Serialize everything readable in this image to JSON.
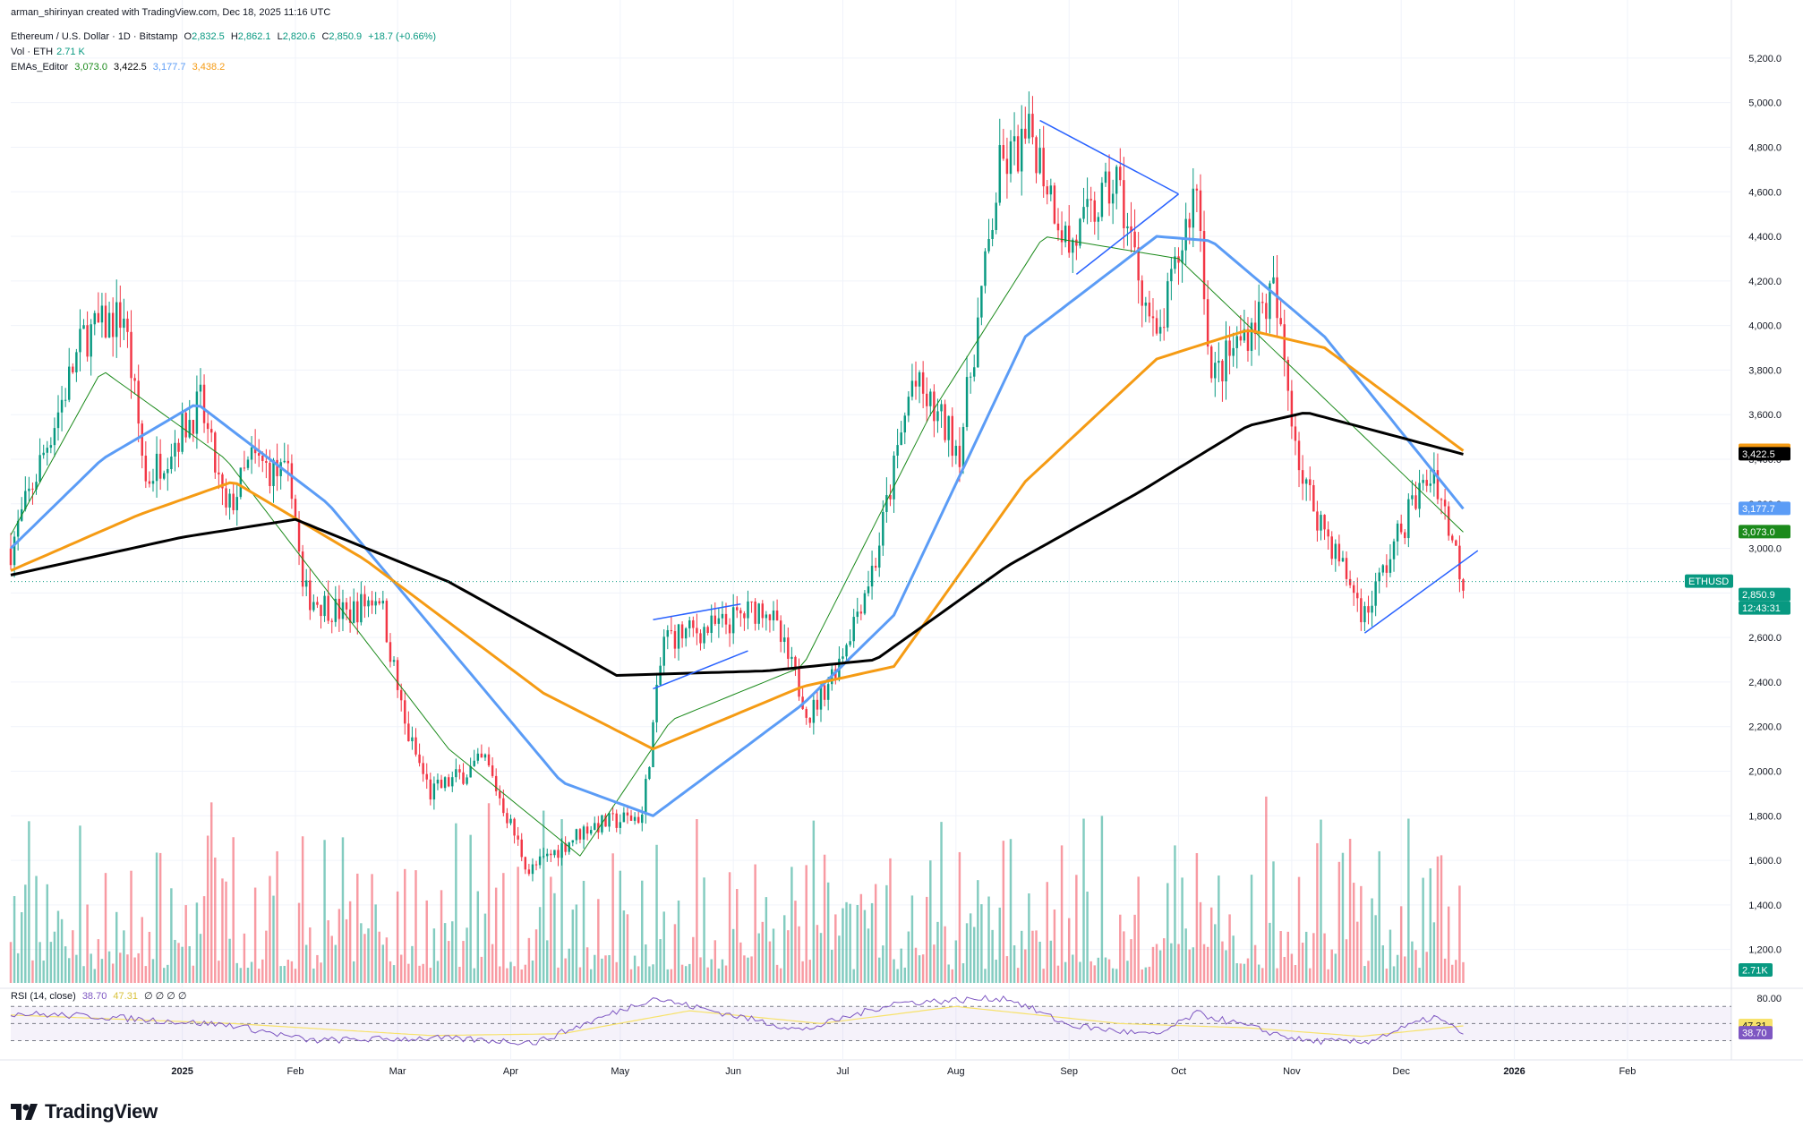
{
  "header": {
    "credit": "arman_shirinyan created with TradingView.com, Dec 18, 2025 11:16 UTC",
    "symbol": "Ethereum / U.S. Dollar · 1D · Bitstamp",
    "ohlc": {
      "o_label": "O",
      "o": "2,832.5",
      "h_label": "H",
      "h": "2,862.1",
      "l_label": "L",
      "l": "2,820.6",
      "c_label": "C",
      "c": "2,850.9",
      "change": "+18.7 (+0.66%)"
    },
    "vol_label": "Vol · ETH",
    "vol_value": "2.71 K",
    "ema_label": "EMAs_Editor",
    "ema_values": [
      "3,073.0",
      "3,422.5",
      "3,177.7",
      "3,438.2"
    ]
  },
  "rsi_header": {
    "label": "RSI (14, close)",
    "value": "38.70",
    "ma": "47.31",
    "extras": "∅ ∅ ∅ ∅"
  },
  "price_axis": [
    "5,200.0",
    "5,000.0",
    "4,800.0",
    "4,600.0",
    "4,400.0",
    "4,200.0",
    "4,000.0",
    "3,800.0",
    "3,600.0",
    "3,400.0",
    "3,200.0",
    "3,000.0",
    "2,800.0",
    "2,600.0",
    "2,400.0",
    "2,200.0",
    "2,000.0",
    "1,800.0",
    "1,600.0",
    "1,400.0",
    "1,200.0"
  ],
  "rsi_axis": [
    "80.00"
  ],
  "time_axis": [
    "2025",
    "Feb",
    "Mar",
    "Apr",
    "May",
    "Jun",
    "Jul",
    "Aug",
    "Sep",
    "Oct",
    "Nov",
    "Dec",
    "2026",
    "Feb"
  ],
  "price_tags": [
    {
      "text": "3,438.2",
      "color": "#f59b14",
      "price": 3438.2
    },
    {
      "text": "3,422.5",
      "color": "#000000",
      "price": 3422.5
    },
    {
      "text": "3,177.7",
      "color": "#5b9cf6",
      "price": 3177.7
    },
    {
      "text": "3,073.0",
      "color": "#1b8a1b",
      "price": 3073.0
    },
    {
      "text": "ETHUSD",
      "color": "#089981",
      "price": 2850.9
    },
    {
      "text": "2,850.9",
      "color": "#089981",
      "price": 2850.9
    },
    {
      "text": "12:43:31",
      "color": "#089981",
      "price": 2850.9
    }
  ],
  "vol_tag": {
    "text": "2.71K",
    "color": "#089981"
  },
  "rsi_tags": [
    {
      "text": "47.31",
      "color": "#f7e26b",
      "fg": "#131722",
      "rsi": 47.31
    },
    {
      "text": "38.70",
      "color": "#7e57c2",
      "fg": "#ffffff",
      "rsi": 38.7
    }
  ],
  "branding": "TradingView",
  "colors": {
    "up": "#089981",
    "down": "#f23645",
    "ema20": "#1b8a1b",
    "ema50": "#5b9cf6",
    "ema100": "#f59b14",
    "ema200": "#000000",
    "trend": "#2962ff",
    "rsi": "#7e57c2",
    "rsi_ma": "#f7e26b"
  },
  "chart_data": {
    "type": "line",
    "xlabel": "",
    "ylabel": "",
    "ylim": [
      1050,
      5300
    ],
    "x_range": [
      "2024-11-15",
      "2026-02-28"
    ],
    "grid": true,
    "price_key": [
      {
        "date": "2024-11-15",
        "price": 3000
      },
      {
        "date": "2024-12-05",
        "price": 3950
      },
      {
        "date": "2024-12-16",
        "price": 4050
      },
      {
        "date": "2024-12-22",
        "price": 3300
      },
      {
        "date": "2025-01-06",
        "price": 3650
      },
      {
        "date": "2025-01-13",
        "price": 3150
      },
      {
        "date": "2025-01-20",
        "price": 3400
      },
      {
        "date": "2025-01-31",
        "price": 3300
      },
      {
        "date": "2025-02-03",
        "price": 2800
      },
      {
        "date": "2025-02-15",
        "price": 2700
      },
      {
        "date": "2025-02-24",
        "price": 2800
      },
      {
        "date": "2025-03-03",
        "price": 2200
      },
      {
        "date": "2025-03-10",
        "price": 1900
      },
      {
        "date": "2025-03-25",
        "price": 2050
      },
      {
        "date": "2025-04-06",
        "price": 1550
      },
      {
        "date": "2025-04-22",
        "price": 1750
      },
      {
        "date": "2025-05-07",
        "price": 1800
      },
      {
        "date": "2025-05-13",
        "price": 2600
      },
      {
        "date": "2025-05-28",
        "price": 2650
      },
      {
        "date": "2025-06-10",
        "price": 2750
      },
      {
        "date": "2025-06-22",
        "price": 2250
      },
      {
        "date": "2025-06-30",
        "price": 2500
      },
      {
        "date": "2025-07-10",
        "price": 2950
      },
      {
        "date": "2025-07-20",
        "price": 3750
      },
      {
        "date": "2025-08-02",
        "price": 3450
      },
      {
        "date": "2025-08-13",
        "price": 4700
      },
      {
        "date": "2025-08-22",
        "price": 4850
      },
      {
        "date": "2025-09-01",
        "price": 4350
      },
      {
        "date": "2025-09-14",
        "price": 4650
      },
      {
        "date": "2025-09-25",
        "price": 3900
      },
      {
        "date": "2025-10-06",
        "price": 4650
      },
      {
        "date": "2025-10-10",
        "price": 3750
      },
      {
        "date": "2025-10-27",
        "price": 4150
      },
      {
        "date": "2025-11-04",
        "price": 3300
      },
      {
        "date": "2025-11-21",
        "price": 2700
      },
      {
        "date": "2025-12-04",
        "price": 3200
      },
      {
        "date": "2025-12-10",
        "price": 3350
      },
      {
        "date": "2025-12-18",
        "price": 2850.9
      }
    ],
    "series": [
      {
        "values_key": [
          {
            "date": "2024-11-15",
            "price": 3060
          },
          {
            "date": "2024-12-10",
            "price": 3800
          },
          {
            "date": "2025-01-13",
            "price": 3400
          },
          {
            "date": "2025-03-15",
            "price": 2100
          },
          {
            "date": "2025-04-20",
            "price": 1620
          },
          {
            "date": "2025-05-15",
            "price": 2230
          },
          {
            "date": "2025-06-20",
            "price": 2470
          },
          {
            "date": "2025-07-25",
            "price": 3600
          },
          {
            "date": "2025-08-25",
            "price": 4400
          },
          {
            "date": "2025-10-01",
            "price": 4300
          },
          {
            "date": "2025-11-05",
            "price": 3750
          },
          {
            "date": "2025-12-18",
            "price": 3073.0
          }
        ]
      },
      {
        "values_key": [
          {
            "date": "2024-11-15",
            "price": 3000
          },
          {
            "date": "2024-12-10",
            "price": 3400
          },
          {
            "date": "2025-01-05",
            "price": 3650
          },
          {
            "date": "2025-02-10",
            "price": 3200
          },
          {
            "date": "2025-04-15",
            "price": 1950
          },
          {
            "date": "2025-05-10",
            "price": 1800
          },
          {
            "date": "2025-06-20",
            "price": 2300
          },
          {
            "date": "2025-07-15",
            "price": 2700
          },
          {
            "date": "2025-08-20",
            "price": 3950
          },
          {
            "date": "2025-09-25",
            "price": 4400
          },
          {
            "date": "2025-10-10",
            "price": 4380
          },
          {
            "date": "2025-11-10",
            "price": 3950
          },
          {
            "date": "2025-12-18",
            "price": 3177.7
          }
        ]
      },
      {
        "values_key": [
          {
            "date": "2024-11-15",
            "price": 2900
          },
          {
            "date": "2024-12-20",
            "price": 3150
          },
          {
            "date": "2025-01-15",
            "price": 3300
          },
          {
            "date": "2025-02-20",
            "price": 2950
          },
          {
            "date": "2025-04-10",
            "price": 2350
          },
          {
            "date": "2025-05-10",
            "price": 2100
          },
          {
            "date": "2025-06-20",
            "price": 2380
          },
          {
            "date": "2025-07-15",
            "price": 2470
          },
          {
            "date": "2025-08-20",
            "price": 3300
          },
          {
            "date": "2025-09-25",
            "price": 3850
          },
          {
            "date": "2025-10-20",
            "price": 3980
          },
          {
            "date": "2025-11-10",
            "price": 3900
          },
          {
            "date": "2025-12-18",
            "price": 3438.2
          }
        ]
      },
      {
        "values_key": [
          {
            "date": "2024-11-15",
            "price": 2880
          },
          {
            "date": "2025-01-01",
            "price": 3050
          },
          {
            "date": "2025-02-01",
            "price": 3130
          },
          {
            "date": "2025-03-15",
            "price": 2850
          },
          {
            "date": "2025-04-30",
            "price": 2430
          },
          {
            "date": "2025-06-10",
            "price": 2450
          },
          {
            "date": "2025-07-10",
            "price": 2500
          },
          {
            "date": "2025-08-15",
            "price": 2920
          },
          {
            "date": "2025-09-20",
            "price": 3250
          },
          {
            "date": "2025-10-20",
            "price": 3550
          },
          {
            "date": "2025-11-05",
            "price": 3610
          },
          {
            "date": "2025-12-18",
            "price": 3422.5
          }
        ]
      }
    ],
    "trendlines": [
      {
        "points": [
          {
            "date": "2025-05-10",
            "price": 2370
          },
          {
            "date": "2025-06-05",
            "price": 2540
          }
        ]
      },
      {
        "points": [
          {
            "date": "2025-05-10",
            "price": 2680
          },
          {
            "date": "2025-06-03",
            "price": 2750
          }
        ]
      },
      {
        "points": [
          {
            "date": "2025-08-24",
            "price": 4920
          },
          {
            "date": "2025-10-01",
            "price": 4590
          }
        ]
      },
      {
        "points": [
          {
            "date": "2025-09-03",
            "price": 4230
          },
          {
            "date": "2025-10-01",
            "price": 4590
          }
        ]
      },
      {
        "points": [
          {
            "date": "2025-11-21",
            "price": 2620
          },
          {
            "date": "2025-12-22",
            "price": 2990
          }
        ]
      }
    ],
    "rsi_ylim": [
      20,
      85
    ],
    "rsi_key": [
      {
        "date": "2024-11-15",
        "value": 62
      },
      {
        "date": "2024-12-10",
        "value": 58
      },
      {
        "date": "2025-01-15",
        "value": 48
      },
      {
        "date": "2025-02-05",
        "value": 30
      },
      {
        "date": "2025-03-10",
        "value": 33
      },
      {
        "date": "2025-04-08",
        "value": 28
      },
      {
        "date": "2025-05-10",
        "value": 80
      },
      {
        "date": "2025-06-20",
        "value": 42
      },
      {
        "date": "2025-07-15",
        "value": 74
      },
      {
        "date": "2025-08-15",
        "value": 80
      },
      {
        "date": "2025-09-01",
        "value": 48
      },
      {
        "date": "2025-09-25",
        "value": 36
      },
      {
        "date": "2025-10-06",
        "value": 62
      },
      {
        "date": "2025-11-04",
        "value": 30
      },
      {
        "date": "2025-11-21",
        "value": 28
      },
      {
        "date": "2025-12-10",
        "value": 58
      },
      {
        "date": "2025-12-18",
        "value": 38.7
      }
    ],
    "rsi_ma_key": [
      {
        "date": "2024-11-15",
        "value": 60
      },
      {
        "date": "2025-01-15",
        "value": 50
      },
      {
        "date": "2025-03-10",
        "value": 36
      },
      {
        "date": "2025-04-15",
        "value": 38
      },
      {
        "date": "2025-05-20",
        "value": 65
      },
      {
        "date": "2025-06-25",
        "value": 50
      },
      {
        "date": "2025-08-01",
        "value": 70
      },
      {
        "date": "2025-09-15",
        "value": 50
      },
      {
        "date": "2025-10-20",
        "value": 45
      },
      {
        "date": "2025-11-20",
        "value": 35
      },
      {
        "date": "2025-12-18",
        "value": 47.31
      }
    ]
  }
}
